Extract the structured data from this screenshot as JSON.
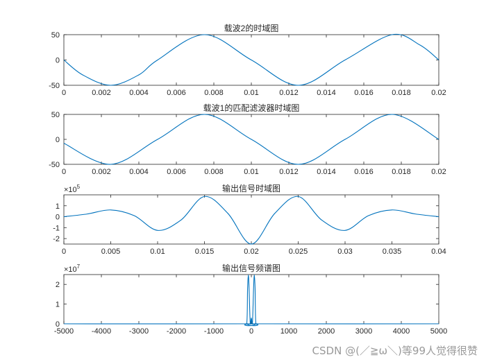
{
  "colors": {
    "line": "#0072BD",
    "axis": "#262626",
    "background": "#ffffff"
  },
  "watermark": "CSDN @(／≧ω＼)等99人觉得很赞",
  "chart_data": [
    {
      "type": "line",
      "title": "载波2的时域图",
      "xlabel": "",
      "ylabel": "",
      "xlim": [
        0,
        0.02
      ],
      "ylim": [
        -50,
        50
      ],
      "xticks": [
        "0",
        "0.002",
        "0.004",
        "0.006",
        "0.008",
        "0.01",
        "0.012",
        "0.014",
        "0.016",
        "0.018",
        "0.02"
      ],
      "yticks": [
        "-50",
        "0",
        "50"
      ],
      "exponent": "",
      "series": [
        {
          "x": [
            0,
            0.001,
            0.0025,
            0.004,
            0.005,
            0.0075,
            0.01,
            0.0125,
            0.015,
            0.0175,
            0.019,
            0.02
          ],
          "y": [
            0,
            -29.4,
            -50,
            -29.4,
            0,
            50,
            0,
            -50,
            0,
            50,
            29.4,
            0
          ]
        }
      ]
    },
    {
      "type": "line",
      "title": "载波1的匹配滤波器时域图",
      "xlabel": "",
      "ylabel": "",
      "xlim": [
        0,
        0.02
      ],
      "ylim": [
        -50,
        50
      ],
      "xticks": [
        "0",
        "0.002",
        "0.004",
        "0.006",
        "0.008",
        "0.01",
        "0.012",
        "0.014",
        "0.016",
        "0.018",
        "0.02"
      ],
      "yticks": [
        "-50",
        "0",
        "50"
      ],
      "exponent": "",
      "series": [
        {
          "x": [
            0,
            0.0025,
            0.005,
            0.0075,
            0.01,
            0.0125,
            0.015,
            0.0175,
            0.02
          ],
          "y": [
            -7.8,
            -50,
            0,
            50,
            0,
            -50,
            0,
            50,
            0
          ]
        }
      ]
    },
    {
      "type": "line",
      "title": "输出信号时域图",
      "xlabel": "",
      "ylabel": "",
      "xlim": [
        0,
        0.04
      ],
      "ylim": [
        -2.5,
        2
      ],
      "xticks": [
        "0",
        "0.005",
        "0.01",
        "0.015",
        "0.02",
        "0.025",
        "0.03",
        "0.035",
        "0.04"
      ],
      "yticks": [
        "-2",
        "-1",
        "0",
        "1"
      ],
      "exponent": "5",
      "series": [
        {
          "x": [
            0,
            0.0025,
            0.005,
            0.0075,
            0.01,
            0.0125,
            0.015,
            0.0175,
            0.02,
            0.0225,
            0.025,
            0.0275,
            0.03,
            0.0325,
            0.035,
            0.0375,
            0.04
          ],
          "y": [
            0,
            0.25,
            0.62,
            0.1,
            -1.25,
            -0.3,
            1.85,
            0.3,
            -2.5,
            0.3,
            1.85,
            -0.3,
            -1.25,
            0.1,
            0.62,
            0.25,
            0
          ]
        }
      ]
    },
    {
      "type": "line",
      "title": "输出信号频谱图",
      "xlabel": "",
      "ylabel": "",
      "xlim": [
        -5000,
        5000
      ],
      "ylim": [
        0,
        2.5
      ],
      "xticks": [
        "-5000",
        "-4000",
        "-3000",
        "-2000",
        "-1000",
        "0",
        "1000",
        "2000",
        "3000",
        "4000",
        "5000"
      ],
      "yticks": [
        "0",
        "1",
        "2"
      ],
      "exponent": "7",
      "series": [
        {
          "x": [
            -5000,
            -200,
            -120,
            -100,
            -80,
            -60,
            -30,
            0,
            30,
            60,
            80,
            100,
            120,
            200,
            5000
          ],
          "y": [
            0,
            0,
            0.05,
            1.8,
            2.48,
            1.8,
            0.05,
            0.3,
            0.05,
            1.8,
            2.48,
            1.8,
            0.05,
            0,
            0
          ]
        }
      ]
    }
  ]
}
